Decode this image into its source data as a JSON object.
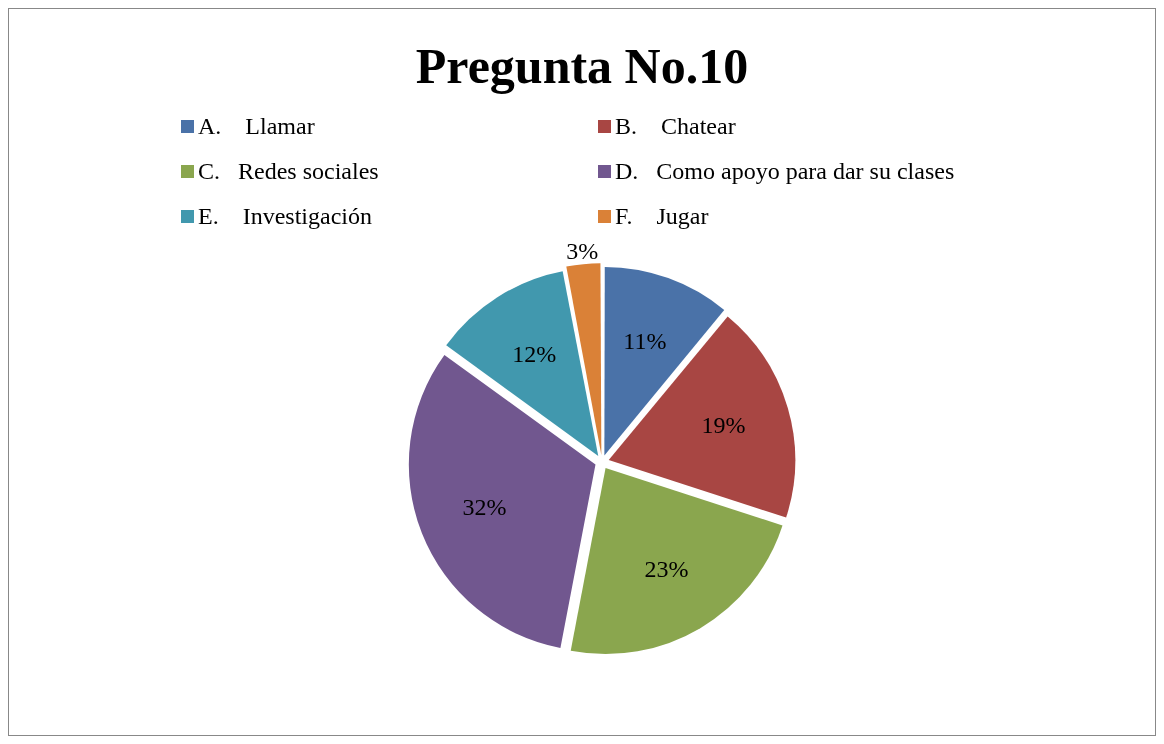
{
  "chart_data": {
    "type": "pie",
    "title": "Pregunta No.10",
    "categories": [
      "A.    Llamar",
      "B.    Chatear",
      "C.   Redes sociales",
      "D.   Como apoyo para dar su clases",
      "E.    Investigación",
      "F.    Jugar"
    ],
    "values": [
      11,
      19,
      23,
      32,
      12,
      3
    ],
    "colors": [
      "#4a72a8",
      "#a84643",
      "#8aa64e",
      "#71578f",
      "#4198ae",
      "#da8137"
    ],
    "value_labels": [
      "11%",
      "19%",
      "23%",
      "32%",
      "12%",
      "3%"
    ],
    "legend": "top"
  }
}
